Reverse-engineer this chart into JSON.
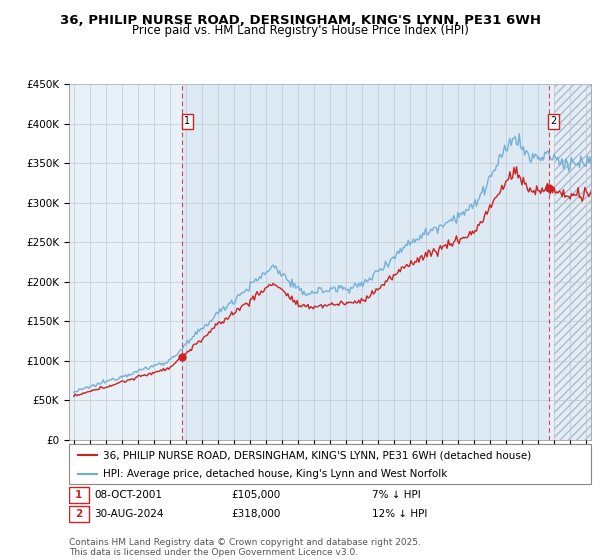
{
  "title": "36, PHILIP NURSE ROAD, DERSINGHAM, KING'S LYNN, PE31 6WH",
  "subtitle": "Price paid vs. HM Land Registry's House Price Index (HPI)",
  "ylim": [
    0,
    450000
  ],
  "yticks": [
    0,
    50000,
    100000,
    150000,
    200000,
    250000,
    300000,
    350000,
    400000,
    450000
  ],
  "ytick_labels": [
    "£0",
    "£50K",
    "£100K",
    "£150K",
    "£200K",
    "£250K",
    "£300K",
    "£350K",
    "£400K",
    "£450K"
  ],
  "xlim_start": 1994.7,
  "xlim_end": 2027.3,
  "bg_color": "#ffffff",
  "plot_bg_color": "#e8f0f8",
  "grid_color": "#c0c8d0",
  "hpi_color": "#6aaad4",
  "price_color": "#cc2222",
  "shade_between_color": "#d8e8f4",
  "future_hatch_color": "#c8d4e0",
  "marker1_year": 2001.78,
  "marker1_price": 105000,
  "marker1_date": "08-OCT-2001",
  "marker1_pct": "7% ↓ HPI",
  "marker2_year": 2024.67,
  "marker2_price": 318000,
  "marker2_date": "30-AUG-2024",
  "marker2_pct": "12% ↓ HPI",
  "legend_label1": "36, PHILIP NURSE ROAD, DERSINGHAM, KING'S LYNN, PE31 6WH (detached house)",
  "legend_label2": "HPI: Average price, detached house, King's Lynn and West Norfolk",
  "footer": "Contains HM Land Registry data © Crown copyright and database right 2025.\nThis data is licensed under the Open Government Licence v3.0.",
  "title_fontsize": 9.5,
  "subtitle_fontsize": 8.5,
  "tick_fontsize": 7.5,
  "legend_fontsize": 7.5,
  "annot_fontsize": 7.5,
  "footer_fontsize": 6.5
}
